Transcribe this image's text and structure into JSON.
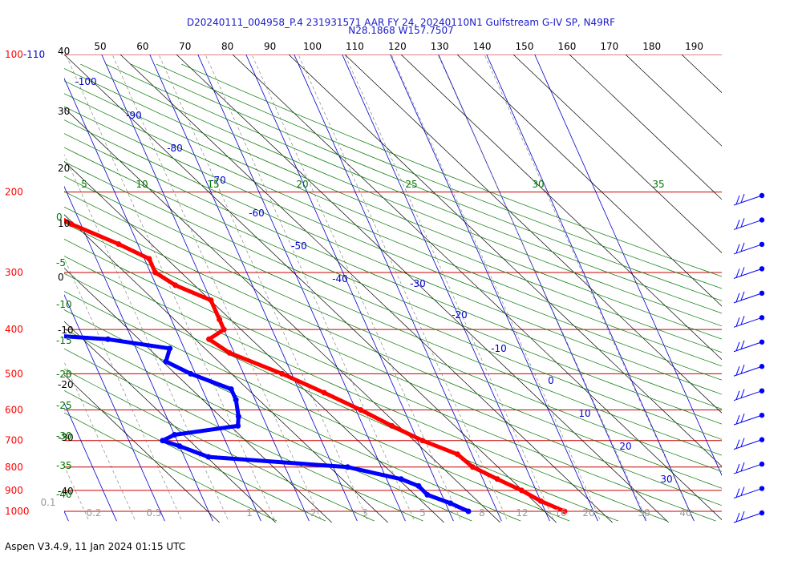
{
  "header": {
    "title_line1": "D20240111_004958_P.4 231931571 AAR FY 24, 20240110N1 Gulfstream G-IV SP, N49RF",
    "title_line2": "N28.1868 W157.7507"
  },
  "footer": {
    "text": "Aspen V3.4.9, 11 Jan 2024  01:15 UTC"
  },
  "chart_data": {
    "type": "skew-t log-p sounding",
    "pressure_labels": [
      "100-110",
      "200",
      "300",
      "400",
      "500",
      "600",
      "700",
      "800",
      "900",
      "1000"
    ],
    "height_labels_kft": [
      "40",
      "30",
      "20",
      "10",
      "0",
      "-10",
      "-20",
      "-30",
      "-40"
    ],
    "top_temp_labels_f": [
      "50",
      "60",
      "70",
      "80",
      "90",
      "100",
      "110",
      "120",
      "130",
      "140",
      "150",
      "160",
      "170",
      "180",
      "190"
    ],
    "isotherm_labels_c": [
      "-100",
      "-90",
      "-80",
      "-70",
      "-60",
      "-50",
      "-40",
      "-30",
      "-20",
      "-10",
      "0",
      "10",
      "20",
      "30"
    ],
    "mixing_ratio_labels": [
      "0.1",
      "0.2",
      "0.5",
      "1",
      "2",
      "3",
      "5",
      "8",
      "12",
      "16",
      "20",
      "30",
      "40"
    ],
    "green_top_labels": [
      "5",
      "10",
      "15",
      "20",
      "25",
      "30",
      "35"
    ],
    "green_side_labels": [
      "0",
      "-5",
      "-10",
      "-15",
      "-20",
      "-25",
      "-30",
      "-35",
      "-40"
    ],
    "temperature_profile": [
      {
        "p": 200,
        "t": -59
      },
      {
        "p": 215,
        "t": -57
      },
      {
        "p": 235,
        "t": -52
      },
      {
        "p": 260,
        "t": -44
      },
      {
        "p": 280,
        "t": -39
      },
      {
        "p": 300,
        "t": -39
      },
      {
        "p": 320,
        "t": -36
      },
      {
        "p": 345,
        "t": -30
      },
      {
        "p": 380,
        "t": -30
      },
      {
        "p": 400,
        "t": -30
      },
      {
        "p": 420,
        "t": -34
      },
      {
        "p": 450,
        "t": -31
      },
      {
        "p": 500,
        "t": -22
      },
      {
        "p": 550,
        "t": -15
      },
      {
        "p": 600,
        "t": -9
      },
      {
        "p": 650,
        "t": -4
      },
      {
        "p": 700,
        "t": 1
      },
      {
        "p": 750,
        "t": 7
      },
      {
        "p": 800,
        "t": 9
      },
      {
        "p": 850,
        "t": 13
      },
      {
        "p": 900,
        "t": 17
      },
      {
        "p": 950,
        "t": 20
      },
      {
        "p": 1000,
        "t": 24
      }
    ],
    "dewpoint_profile": [
      {
        "p": 260,
        "t": -93
      },
      {
        "p": 300,
        "t": -85
      },
      {
        "p": 340,
        "t": -74
      },
      {
        "p": 360,
        "t": -76
      },
      {
        "p": 375,
        "t": -82
      },
      {
        "p": 400,
        "t": -84
      },
      {
        "p": 420,
        "t": -55
      },
      {
        "p": 440,
        "t": -43
      },
      {
        "p": 470,
        "t": -45
      },
      {
        "p": 500,
        "t": -41
      },
      {
        "p": 540,
        "t": -34
      },
      {
        "p": 570,
        "t": -34
      },
      {
        "p": 620,
        "t": -35
      },
      {
        "p": 650,
        "t": -36
      },
      {
        "p": 680,
        "t": -50
      },
      {
        "p": 700,
        "t": -53
      },
      {
        "p": 720,
        "t": -50
      },
      {
        "p": 760,
        "t": -45
      },
      {
        "p": 800,
        "t": -17
      },
      {
        "p": 850,
        "t": -7
      },
      {
        "p": 880,
        "t": -4
      },
      {
        "p": 920,
        "t": -3
      },
      {
        "p": 960,
        "t": 1
      },
      {
        "p": 1000,
        "t": 4
      }
    ],
    "wind_barbs_count": 14,
    "colors": {
      "temperature": "#ff0000",
      "dewpoint": "#0000ff",
      "isobar": "#cc0000",
      "isotherm": "#0000cc",
      "adiabat": "#007700",
      "axis_label_red": "#ff0000"
    }
  }
}
